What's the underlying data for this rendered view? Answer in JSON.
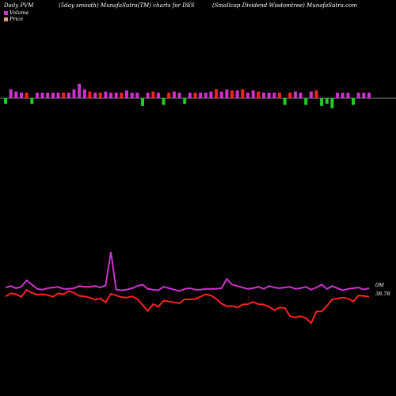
{
  "header": {
    "left": "Daily PVM",
    "middle": "(5day smooth) MunafaSutra(TM) charts for DES",
    "right": "(Smallcap Dividend Wisdomtree) MunafaSutra.com"
  },
  "legend": [
    {
      "label": "Volume",
      "color": "#cc33cc"
    },
    {
      "label": "Price",
      "color": "#e0a080"
    }
  ],
  "labels": {
    "volume_last": "0M",
    "price_last": "38.78"
  },
  "chart_data": {
    "type": "line",
    "title": "",
    "xlabel": "",
    "ylabel": "",
    "grid": false,
    "legend_placement": "top-left",
    "colors": {
      "volume_line": "#cc33cc",
      "price_line": "#ff2020",
      "pvm_up": "#cc33cc",
      "pvm_up_alt": "#ff2020",
      "pvm_down": "#22cc22",
      "baseline": "#ffffff"
    },
    "pvm_bars": {
      "direction": [
        -1,
        1,
        1,
        1,
        1,
        -1,
        1,
        1,
        1,
        1,
        1,
        1,
        1,
        1,
        1,
        1,
        1,
        1,
        1,
        1,
        1,
        1,
        1,
        1,
        1,
        1,
        -1,
        1,
        1,
        1,
        -1,
        1,
        1,
        1,
        -1,
        1,
        1,
        1,
        1,
        1,
        1,
        1,
        1,
        1,
        1,
        1,
        1,
        1,
        1,
        1,
        1,
        1,
        1,
        -1,
        1,
        1,
        1,
        -1,
        1,
        1,
        -1,
        -1,
        -1,
        1,
        1,
        1,
        -1,
        1,
        1,
        1
      ],
      "magnitude": [
        5,
        8,
        6,
        5,
        5,
        5,
        5,
        5,
        5,
        5,
        5,
        5,
        5,
        8,
        13,
        8,
        6,
        5,
        5,
        6,
        5,
        5,
        5,
        7,
        5,
        5,
        7,
        5,
        6,
        5,
        6,
        5,
        6,
        5,
        5,
        5,
        5,
        5,
        5,
        6,
        8,
        6,
        8,
        7,
        7,
        8,
        5,
        7,
        6,
        5,
        5,
        5,
        5,
        6,
        5,
        6,
        5,
        6,
        6,
        7,
        7,
        5,
        9,
        5,
        5,
        5,
        6,
        5,
        5,
        5
      ],
      "red": [
        false,
        false,
        false,
        false,
        true,
        false,
        false,
        false,
        false,
        false,
        false,
        true,
        false,
        false,
        false,
        false,
        true,
        false,
        true,
        false,
        false,
        false,
        true,
        false,
        false,
        false,
        false,
        false,
        true,
        false,
        false,
        true,
        false,
        false,
        false,
        false,
        true,
        false,
        false,
        false,
        true,
        false,
        false,
        true,
        false,
        true,
        false,
        false,
        true,
        false,
        false,
        false,
        true,
        false,
        true,
        false,
        false,
        false,
        false,
        true,
        false,
        false,
        false,
        false,
        false,
        false,
        false,
        false,
        false,
        false
      ]
    },
    "series": [
      {
        "name": "Volume",
        "values": [
          10,
          12,
          9,
          11,
          20,
          14,
          8,
          7,
          9,
          10,
          11,
          8,
          8,
          9,
          12,
          11,
          11,
          12,
          10,
          13,
          60,
          7,
          6,
          7,
          9,
          12,
          14,
          8,
          7,
          6,
          11,
          9,
          7,
          5,
          8,
          9,
          7,
          7,
          8,
          8,
          8,
          9,
          22,
          14,
          12,
          10,
          8,
          9,
          11,
          8,
          12,
          10,
          9,
          10,
          11,
          8,
          9,
          11,
          7,
          10,
          14,
          8,
          12,
          9,
          6,
          8,
          9,
          10,
          7,
          9
        ]
      },
      {
        "name": "Price",
        "values": [
          38.4,
          39.1,
          38.9,
          38.3,
          39.9,
          39.2,
          38.8,
          38.9,
          38.7,
          38.3,
          39.1,
          38.9,
          39.6,
          39.2,
          38.5,
          38.4,
          38.1,
          37.6,
          37.9,
          37.0,
          39.0,
          38.6,
          38.2,
          38.1,
          38.4,
          37.8,
          36.4,
          35.0,
          36.6,
          36.0,
          37.4,
          37.2,
          37.0,
          36.8,
          37.7,
          37.7,
          37.8,
          38.3,
          38.9,
          38.6,
          37.8,
          36.7,
          36.1,
          36.2,
          35.8,
          36.5,
          36.6,
          37.1,
          36.6,
          36.5,
          36.0,
          35.2,
          35.8,
          35.7,
          33.8,
          33.5,
          33.8,
          33.4,
          32.2,
          34.9,
          34.9,
          36.2,
          37.7,
          37.9,
          38.1,
          37.9,
          37.2,
          38.6,
          38.5,
          38.3
        ]
      }
    ],
    "y_volume_range": [
      0,
      60
    ],
    "y_price_range": [
      30,
      41
    ]
  }
}
